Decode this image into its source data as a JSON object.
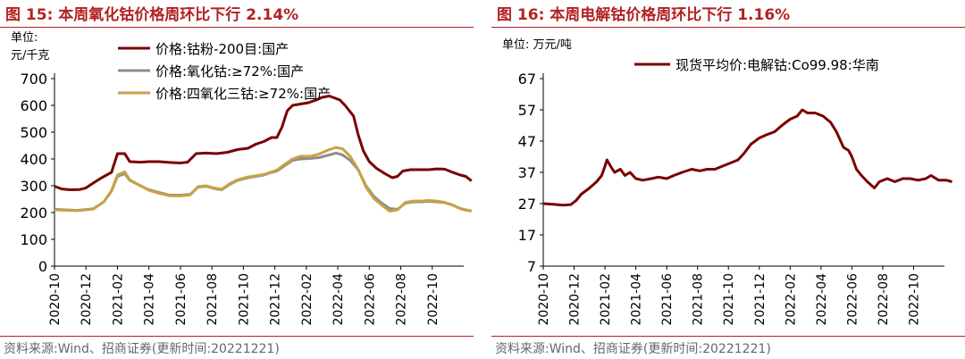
{
  "panels": [
    {
      "figure_label": "图 15:",
      "title": "本周氧化钴价格周环比下行 2.14%",
      "source": "资料来源:Wind、招商证券(更新时间:20221221)"
    },
    {
      "figure_label": "图 16:",
      "title": "本周电解钴价格周环比下行 1.16%",
      "source": "资料来源:Wind、招商证券(更新时间:20221221)"
    }
  ],
  "chart_data": [
    {
      "type": "line",
      "unit_label_lines": [
        "单位:",
        "元/千克"
      ],
      "ylim": [
        0,
        700
      ],
      "yticks": [
        0,
        100,
        200,
        300,
        400,
        500,
        600,
        700
      ],
      "xlim": [
        "2020-10",
        "2022-12"
      ],
      "xticks": [
        "2020-10",
        "2020-12",
        "2021-02",
        "2021-04",
        "2021-06",
        "2021-08",
        "2021-10",
        "2021-12",
        "2022-02",
        "2022-04",
        "2022-06",
        "2022-08",
        "2022-10"
      ],
      "grid": false,
      "legend_position": "top",
      "series": [
        {
          "name": "价格:钴粉-200目:国产",
          "color": "#7a0000",
          "points": [
            [
              "2020-10-01",
              298
            ],
            [
              "2020-10-15",
              288
            ],
            [
              "2020-11-01",
              285
            ],
            [
              "2020-11-20",
              286
            ],
            [
              "2020-12-01",
              292
            ],
            [
              "2020-12-15",
              310
            ],
            [
              "2021-01-01",
              330
            ],
            [
              "2021-01-20",
              350
            ],
            [
              "2021-02-01",
              420
            ],
            [
              "2021-02-15",
              420
            ],
            [
              "2021-02-25",
              390
            ],
            [
              "2021-03-15",
              388
            ],
            [
              "2021-04-01",
              390
            ],
            [
              "2021-04-20",
              390
            ],
            [
              "2021-05-10",
              387
            ],
            [
              "2021-06-01",
              385
            ],
            [
              "2021-06-15",
              388
            ],
            [
              "2021-07-01",
              420
            ],
            [
              "2021-07-20",
              422
            ],
            [
              "2021-08-10",
              420
            ],
            [
              "2021-09-01",
              425
            ],
            [
              "2021-09-20",
              435
            ],
            [
              "2021-10-10",
              440
            ],
            [
              "2021-10-25",
              455
            ],
            [
              "2021-11-10",
              465
            ],
            [
              "2021-11-25",
              480
            ],
            [
              "2021-12-05",
              480
            ],
            [
              "2021-12-15",
              520
            ],
            [
              "2021-12-25",
              580
            ],
            [
              "2022-01-05",
              600
            ],
            [
              "2022-01-20",
              605
            ],
            [
              "2022-02-05",
              610
            ],
            [
              "2022-02-20",
              620
            ],
            [
              "2022-03-01",
              630
            ],
            [
              "2022-03-15",
              635
            ],
            [
              "2022-03-25",
              628
            ],
            [
              "2022-04-05",
              620
            ],
            [
              "2022-04-15",
              600
            ],
            [
              "2022-05-01",
              560
            ],
            [
              "2022-05-10",
              490
            ],
            [
              "2022-05-20",
              430
            ],
            [
              "2022-06-01",
              390
            ],
            [
              "2022-06-15",
              365
            ],
            [
              "2022-07-01",
              345
            ],
            [
              "2022-07-15",
              330
            ],
            [
              "2022-07-25",
              335
            ],
            [
              "2022-08-05",
              355
            ],
            [
              "2022-08-20",
              360
            ],
            [
              "2022-09-05",
              360
            ],
            [
              "2022-09-25",
              360
            ],
            [
              "2022-10-10",
              363
            ],
            [
              "2022-10-25",
              362
            ],
            [
              "2022-11-10",
              350
            ],
            [
              "2022-11-25",
              340
            ],
            [
              "2022-12-05",
              335
            ],
            [
              "2022-12-16",
              318
            ]
          ]
        },
        {
          "name": "价格:氧化钴:≥72%:国产",
          "color": "#8c8c8c",
          "points": [
            [
              "2020-10-01",
              212
            ],
            [
              "2020-11-15",
              208
            ],
            [
              "2020-12-15",
              214
            ],
            [
              "2021-01-05",
              240
            ],
            [
              "2021-01-20",
              280
            ],
            [
              "2021-02-01",
              335
            ],
            [
              "2021-02-15",
              345
            ],
            [
              "2021-02-25",
              320
            ],
            [
              "2021-03-15",
              300
            ],
            [
              "2021-04-01",
              285
            ],
            [
              "2021-04-20",
              275
            ],
            [
              "2021-05-10",
              265
            ],
            [
              "2021-06-01",
              265
            ],
            [
              "2021-06-20",
              268
            ],
            [
              "2021-07-05",
              295
            ],
            [
              "2021-07-20",
              298
            ],
            [
              "2021-08-05",
              290
            ],
            [
              "2021-08-20",
              285
            ],
            [
              "2021-09-05",
              305
            ],
            [
              "2021-09-20",
              320
            ],
            [
              "2021-10-10",
              330
            ],
            [
              "2021-10-25",
              335
            ],
            [
              "2021-11-10",
              340
            ],
            [
              "2021-11-25",
              350
            ],
            [
              "2021-12-05",
              355
            ],
            [
              "2021-12-20",
              375
            ],
            [
              "2022-01-05",
              395
            ],
            [
              "2022-01-20",
              400
            ],
            [
              "2022-02-10",
              402
            ],
            [
              "2022-02-25",
              405
            ],
            [
              "2022-03-15",
              415
            ],
            [
              "2022-03-28",
              422
            ],
            [
              "2022-04-10",
              415
            ],
            [
              "2022-04-25",
              395
            ],
            [
              "2022-05-10",
              360
            ],
            [
              "2022-05-25",
              300
            ],
            [
              "2022-06-10",
              260
            ],
            [
              "2022-06-25",
              235
            ],
            [
              "2022-07-10",
              215
            ],
            [
              "2022-07-25",
              212
            ],
            [
              "2022-08-10",
              235
            ],
            [
              "2022-08-25",
              240
            ],
            [
              "2022-09-10",
              240
            ],
            [
              "2022-09-25",
              242
            ],
            [
              "2022-10-10",
              240
            ],
            [
              "2022-10-25",
              237
            ],
            [
              "2022-11-10",
              228
            ],
            [
              "2022-11-25",
              215
            ],
            [
              "2022-12-05",
              210
            ],
            [
              "2022-12-16",
              206
            ]
          ]
        },
        {
          "name": "价格:四氧化三钴:≥72%:国产",
          "color": "#c8a244",
          "points": [
            [
              "2020-10-01",
              210
            ],
            [
              "2020-11-15",
              207
            ],
            [
              "2020-12-15",
              213
            ],
            [
              "2021-01-05",
              240
            ],
            [
              "2021-01-20",
              282
            ],
            [
              "2021-02-01",
              340
            ],
            [
              "2021-02-15",
              352
            ],
            [
              "2021-02-25",
              322
            ],
            [
              "2021-03-15",
              300
            ],
            [
              "2021-04-01",
              283
            ],
            [
              "2021-04-20",
              272
            ],
            [
              "2021-05-10",
              263
            ],
            [
              "2021-06-01",
              262
            ],
            [
              "2021-06-20",
              266
            ],
            [
              "2021-07-05",
              297
            ],
            [
              "2021-07-20",
              300
            ],
            [
              "2021-08-05",
              292
            ],
            [
              "2021-08-20",
              287
            ],
            [
              "2021-09-05",
              308
            ],
            [
              "2021-09-20",
              322
            ],
            [
              "2021-10-10",
              333
            ],
            [
              "2021-10-25",
              337
            ],
            [
              "2021-11-10",
              342
            ],
            [
              "2021-11-25",
              352
            ],
            [
              "2021-12-05",
              358
            ],
            [
              "2021-12-20",
              380
            ],
            [
              "2022-01-05",
              400
            ],
            [
              "2022-01-20",
              410
            ],
            [
              "2022-02-10",
              410
            ],
            [
              "2022-02-25",
              418
            ],
            [
              "2022-03-15",
              435
            ],
            [
              "2022-03-28",
              443
            ],
            [
              "2022-04-10",
              438
            ],
            [
              "2022-04-25",
              410
            ],
            [
              "2022-05-10",
              360
            ],
            [
              "2022-05-25",
              295
            ],
            [
              "2022-06-10",
              252
            ],
            [
              "2022-06-25",
              228
            ],
            [
              "2022-07-10",
              205
            ],
            [
              "2022-07-25",
              210
            ],
            [
              "2022-08-10",
              238
            ],
            [
              "2022-08-25",
              243
            ],
            [
              "2022-09-10",
              243
            ],
            [
              "2022-09-25",
              245
            ],
            [
              "2022-10-10",
              243
            ],
            [
              "2022-10-25",
              238
            ],
            [
              "2022-11-10",
              228
            ],
            [
              "2022-11-25",
              214
            ],
            [
              "2022-12-05",
              209
            ],
            [
              "2022-12-16",
              205
            ]
          ]
        }
      ]
    },
    {
      "type": "line",
      "unit_label_lines": [
        "单位: 万元/吨"
      ],
      "ylim": [
        7,
        67
      ],
      "yticks": [
        7,
        17,
        27,
        37,
        47,
        57,
        67
      ],
      "xlim": [
        "2020-10",
        "2022-12"
      ],
      "xticks": [
        "2020-10",
        "2020-12",
        "2021-02",
        "2021-04",
        "2021-06",
        "2021-08",
        "2021-10",
        "2021-12",
        "2022-02",
        "2022-04",
        "2022-06",
        "2022-08",
        "2022-10"
      ],
      "grid": false,
      "legend_position": "top",
      "series": [
        {
          "name": "现货平均价:电解钴:Co99.98:华南",
          "color": "#7a0000",
          "points": [
            [
              "2020-10-01",
              27
            ],
            [
              "2020-10-20",
              26.8
            ],
            [
              "2020-11-10",
              26.5
            ],
            [
              "2020-11-25",
              26.7
            ],
            [
              "2020-12-05",
              28
            ],
            [
              "2020-12-15",
              30
            ],
            [
              "2021-01-01",
              32
            ],
            [
              "2021-01-15",
              34
            ],
            [
              "2021-01-25",
              36
            ],
            [
              "2021-02-01",
              39
            ],
            [
              "2021-02-05",
              41
            ],
            [
              "2021-02-12",
              39
            ],
            [
              "2021-02-20",
              37
            ],
            [
              "2021-03-01",
              38
            ],
            [
              "2021-03-10",
              36
            ],
            [
              "2021-03-20",
              37
            ],
            [
              "2021-04-01",
              35
            ],
            [
              "2021-04-15",
              34.5
            ],
            [
              "2021-05-01",
              35
            ],
            [
              "2021-05-15",
              35.5
            ],
            [
              "2021-06-01",
              35
            ],
            [
              "2021-06-15",
              36
            ],
            [
              "2021-07-01",
              37
            ],
            [
              "2021-07-20",
              38
            ],
            [
              "2021-08-05",
              37.5
            ],
            [
              "2021-08-20",
              38
            ],
            [
              "2021-09-05",
              38
            ],
            [
              "2021-09-20",
              39
            ],
            [
              "2021-10-05",
              40
            ],
            [
              "2021-10-20",
              41
            ],
            [
              "2021-11-01",
              43
            ],
            [
              "2021-11-15",
              46
            ],
            [
              "2021-12-01",
              48
            ],
            [
              "2021-12-15",
              49
            ],
            [
              "2022-01-01",
              50
            ],
            [
              "2022-01-15",
              52
            ],
            [
              "2022-02-01",
              54
            ],
            [
              "2022-02-15",
              55
            ],
            [
              "2022-02-25",
              57
            ],
            [
              "2022-03-05",
              56
            ],
            [
              "2022-03-20",
              56
            ],
            [
              "2022-04-05",
              55
            ],
            [
              "2022-04-20",
              53
            ],
            [
              "2022-05-01",
              50
            ],
            [
              "2022-05-15",
              45
            ],
            [
              "2022-05-25",
              44
            ],
            [
              "2022-06-01",
              42
            ],
            [
              "2022-06-10",
              38
            ],
            [
              "2022-06-20",
              36
            ],
            [
              "2022-07-01",
              34
            ],
            [
              "2022-07-15",
              32
            ],
            [
              "2022-07-25",
              34
            ],
            [
              "2022-08-10",
              35
            ],
            [
              "2022-08-25",
              34
            ],
            [
              "2022-09-10",
              35
            ],
            [
              "2022-09-25",
              35
            ],
            [
              "2022-10-10",
              34.5
            ],
            [
              "2022-10-25",
              35
            ],
            [
              "2022-11-05",
              36
            ],
            [
              "2022-11-20",
              34.5
            ],
            [
              "2022-12-05",
              34.5
            ],
            [
              "2022-12-16",
              34
            ]
          ]
        }
      ]
    }
  ]
}
